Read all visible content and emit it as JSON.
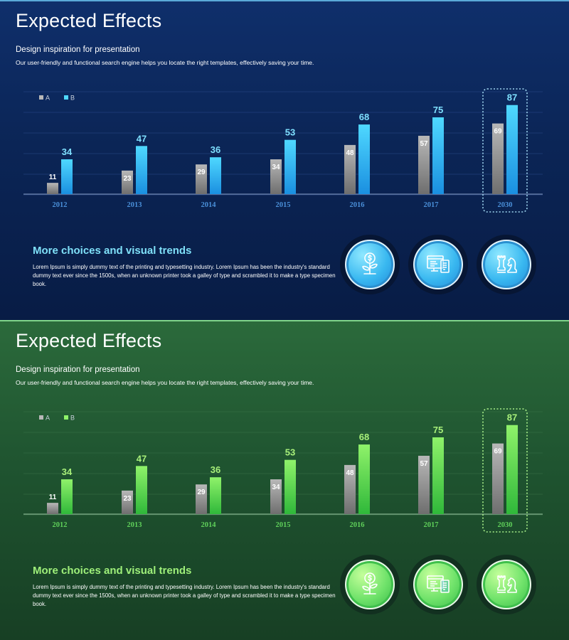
{
  "slides": [
    {
      "id": "blue",
      "title": "Expected Effects",
      "subtitle": "Design inspiration for presentation",
      "description": "Our user-friendly and functional search engine helps you locate the right templates, effectively saving your time.",
      "bottom_heading": "More choices and visual trends",
      "bottom_body": "Lorem Ipsum  is simply dummy text of the printing and typesetting industry. Lorem Ipsum has been the industry's standard dummy text ever since the 1500s, when an unknown printer took  a galley of type and scrambled it to make a type specimen book.",
      "icons": [
        "money-plant-icon",
        "documents-icon",
        "chess-pieces-icon"
      ],
      "colors": {
        "a_top": "#b8b8b8",
        "a_bottom": "#6e6e6e",
        "b_top": "#4fd8ff",
        "b_bottom": "#1a8fe0",
        "b_label": "#7fe0ff",
        "year_label": "#4a90d9",
        "grid": "#2a4a88",
        "axis": "#8aa0c8",
        "highlight": "#9fd6f0"
      }
    },
    {
      "id": "green",
      "title": "Expected Effects",
      "subtitle": "Design inspiration for presentation",
      "description": "Our user-friendly and functional search engine helps you locate the right templates, effectively saving your time.",
      "bottom_heading": "More choices and visual trends",
      "bottom_body": "Lorem Ipsum  is simply dummy text of the printing and typesetting industry. Lorem Ipsum has been the industry's standard dummy text ever since the 1500s, when an unknown printer took  a galley of type and scrambled it to make a type specimen book.",
      "icons": [
        "money-plant-icon",
        "documents-icon",
        "chess-pieces-icon"
      ],
      "colors": {
        "a_top": "#b8b8b8",
        "a_bottom": "#6e6e6e",
        "b_top": "#8ff26a",
        "b_bottom": "#2fb83a",
        "b_label": "#a8f07a",
        "year_label": "#5fd05a",
        "grid": "#3a7248",
        "axis": "#9cc8a4",
        "highlight": "#a8f08a"
      }
    }
  ],
  "chart_data": [
    {
      "type": "bar",
      "title": "",
      "categories": [
        "2012",
        "2013",
        "2014",
        "2015",
        "2016",
        "2017",
        "2030"
      ],
      "series": [
        {
          "name": "A",
          "values": [
            11,
            23,
            29,
            34,
            48,
            57,
            69
          ]
        },
        {
          "name": "B",
          "values": [
            34,
            47,
            36,
            53,
            68,
            75,
            87
          ]
        }
      ],
      "highlighted_category": "2030",
      "legend": "top-left",
      "ylim": [
        0,
        100
      ],
      "grid": true
    },
    {
      "type": "bar",
      "title": "",
      "categories": [
        "2012",
        "2013",
        "2014",
        "2015",
        "2016",
        "2017",
        "2030"
      ],
      "series": [
        {
          "name": "A",
          "values": [
            11,
            23,
            29,
            34,
            48,
            57,
            69
          ]
        },
        {
          "name": "B",
          "values": [
            34,
            47,
            36,
            53,
            68,
            75,
            87
          ]
        }
      ],
      "highlighted_category": "2030",
      "legend": "top-left",
      "ylim": [
        0,
        100
      ],
      "grid": true
    }
  ]
}
